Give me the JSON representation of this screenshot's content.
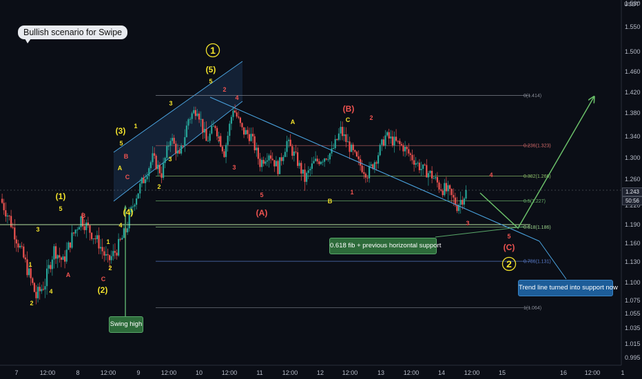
{
  "title": "Bullish scenario for Swipe",
  "currency": "USDT",
  "price_tag": "1.243",
  "countdown_tag": "50:56",
  "colors": {
    "background": "#0b0e16",
    "up_candle": "#26a69a",
    "down_candle": "#ef5350",
    "wave_yellow": "#f2e22b",
    "wave_red": "#ef5350",
    "trend_line": "#4aa3df",
    "channel_fill": "#1c3a5c",
    "fib_level": "#5a5f6c",
    "support_green": "#b7e3a0",
    "arrow_green": "#6abf69"
  },
  "annotations": {
    "fib_support": "0.618 fib + previous horizontal support",
    "trendline_support": "Trend line turned into support now",
    "swing_high": "Swing high"
  },
  "wave_labels": [
    {
      "text": "1",
      "color": "yellow",
      "circle": true
    },
    {
      "text": "(5)",
      "color": "yellow"
    },
    {
      "text": "5",
      "color": "yellow"
    },
    {
      "text": "2",
      "color": "red"
    },
    {
      "text": "4",
      "color": "red"
    },
    {
      "text": "3",
      "color": "yellow"
    },
    {
      "text": "1",
      "color": "yellow"
    },
    {
      "text": "(3)",
      "color": "yellow"
    },
    {
      "text": "5",
      "color": "yellow"
    },
    {
      "text": "B",
      "color": "red"
    },
    {
      "text": "3",
      "color": "yellow"
    },
    {
      "text": "A",
      "color": "yellow"
    },
    {
      "text": "C",
      "color": "red"
    },
    {
      "text": "(4)",
      "color": "yellow"
    },
    {
      "text": "4",
      "color": "yellow"
    },
    {
      "text": "2",
      "color": "yellow"
    },
    {
      "text": "1",
      "color": "red"
    },
    {
      "text": "3",
      "color": "red"
    },
    {
      "text": "5",
      "color": "red"
    },
    {
      "text": "(A)",
      "color": "red"
    },
    {
      "text": "(B)",
      "color": "red"
    },
    {
      "text": "A",
      "color": "yellow"
    },
    {
      "text": "C",
      "color": "yellow"
    },
    {
      "text": "2",
      "color": "red"
    },
    {
      "text": "B",
      "color": "yellow"
    },
    {
      "text": "1",
      "color": "red"
    },
    {
      "text": "4",
      "color": "red"
    },
    {
      "text": "3",
      "color": "red"
    },
    {
      "text": "5",
      "color": "red"
    },
    {
      "text": "(C)",
      "color": "red"
    },
    {
      "text": "2",
      "color": "yellow",
      "circle": true
    },
    {
      "text": "(1)",
      "color": "yellow"
    },
    {
      "text": "5",
      "color": "yellow"
    },
    {
      "text": "3",
      "color": "yellow"
    },
    {
      "text": "B",
      "color": "red"
    },
    {
      "text": "1",
      "color": "yellow"
    },
    {
      "text": "A",
      "color": "red"
    },
    {
      "text": "2",
      "color": "yellow"
    },
    {
      "text": "4",
      "color": "yellow"
    },
    {
      "text": "1",
      "color": "yellow"
    },
    {
      "text": "C",
      "color": "red"
    },
    {
      "text": "2",
      "color": "yellow"
    },
    {
      "text": "(2)",
      "color": "yellow"
    }
  ],
  "chart_data": {
    "type": "candlestick",
    "currency": "USDT",
    "grid": false,
    "x_ticks": [
      "7",
      "12:00",
      "8",
      "12:00",
      "9",
      "12:00",
      "10",
      "12:00",
      "11",
      "12:00",
      "12",
      "12:00",
      "13",
      "12:00",
      "14",
      "12:00",
      "15",
      "16",
      "12:00",
      "1"
    ],
    "y_ticks": [
      "1.580",
      "1.550",
      "1.500",
      "1.460",
      "1.420",
      "1.380",
      "1.340",
      "1.300",
      "1.260",
      "1.220",
      "1.190",
      "1.160",
      "1.130",
      "1.100",
      "1.075",
      "1.055",
      "1.035",
      "1.015",
      "0.995"
    ],
    "ylim": [
      0.985,
      1.58
    ],
    "last_price": 1.243,
    "fib_levels": [
      {
        "ratio": "0",
        "price": 1.414,
        "label": "0(1.414)"
      },
      {
        "ratio": "0.236",
        "price": 1.323,
        "label": "0.236(1.323)"
      },
      {
        "ratio": "0.382",
        "price": 1.266,
        "label": "0.382(1.266)"
      },
      {
        "ratio": "0.5",
        "price": 1.227,
        "label": "0.5(1.227)"
      },
      {
        "ratio": "0.618",
        "price": 1.186,
        "label": "0.618(1.186)"
      },
      {
        "ratio": "0.786",
        "price": 1.131,
        "label": "0.786(1.131)"
      },
      {
        "ratio": "1",
        "price": 1.064,
        "label": "1(1.064)"
      }
    ],
    "horizontal_support": 1.19,
    "descending_trendline": {
      "from": 1.41,
      "to": 1.16
    },
    "projection": {
      "from": 1.19,
      "to": 1.42
    },
    "approx_price_path": [
      1.23,
      1.2,
      1.16,
      1.12,
      1.08,
      1.1,
      1.15,
      1.13,
      1.17,
      1.2,
      1.18,
      1.16,
      1.13,
      1.15,
      1.18,
      1.23,
      1.26,
      1.3,
      1.27,
      1.34,
      1.3,
      1.37,
      1.39,
      1.33,
      1.36,
      1.31,
      1.39,
      1.35,
      1.34,
      1.29,
      1.31,
      1.28,
      1.33,
      1.3,
      1.26,
      1.29,
      1.3,
      1.31,
      1.35,
      1.32,
      1.29,
      1.27,
      1.3,
      1.34,
      1.33,
      1.32,
      1.3,
      1.28,
      1.27,
      1.25,
      1.24,
      1.22,
      1.24
    ]
  }
}
